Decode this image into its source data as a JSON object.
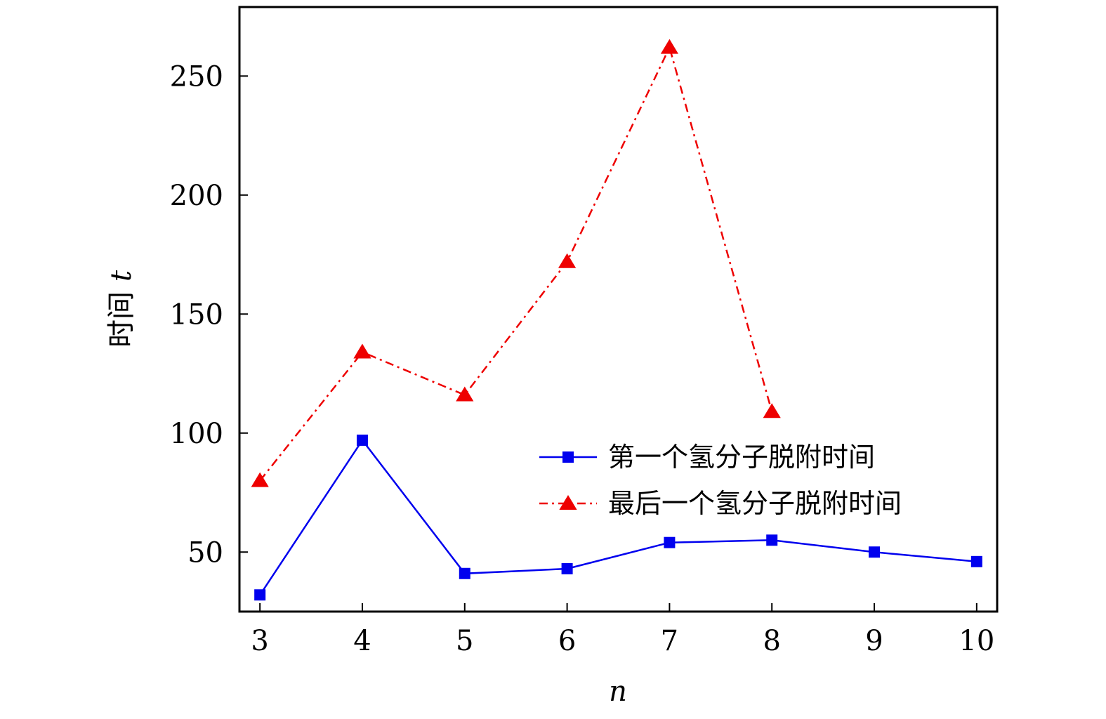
{
  "chart_data": {
    "type": "line",
    "title": "",
    "xlabel": "n",
    "ylabel_prefix": "时间",
    "ylabel_var": "t",
    "xlim": [
      2.8,
      10.2
    ],
    "ylim": [
      25,
      279
    ],
    "x_ticks": [
      3,
      4,
      5,
      6,
      7,
      8,
      9,
      10
    ],
    "y_ticks": [
      50,
      100,
      150,
      200,
      250
    ],
    "grid": false,
    "legend_position": "center-right",
    "series": [
      {
        "name": "第一个氢分子脱附时间",
        "color": "#0000ee",
        "marker": "square",
        "line_style": "solid",
        "x": [
          3,
          4,
          5,
          6,
          7,
          8,
          9,
          10
        ],
        "y": [
          32,
          97,
          41,
          43,
          54,
          55,
          50,
          46
        ]
      },
      {
        "name": "最后一个氢分子脱附时间",
        "color": "#ee0000",
        "marker": "triangle",
        "line_style": "dash-dot",
        "x": [
          3,
          4,
          5,
          6,
          7,
          8
        ],
        "y": [
          80,
          134,
          116,
          172,
          262,
          109
        ]
      }
    ]
  }
}
